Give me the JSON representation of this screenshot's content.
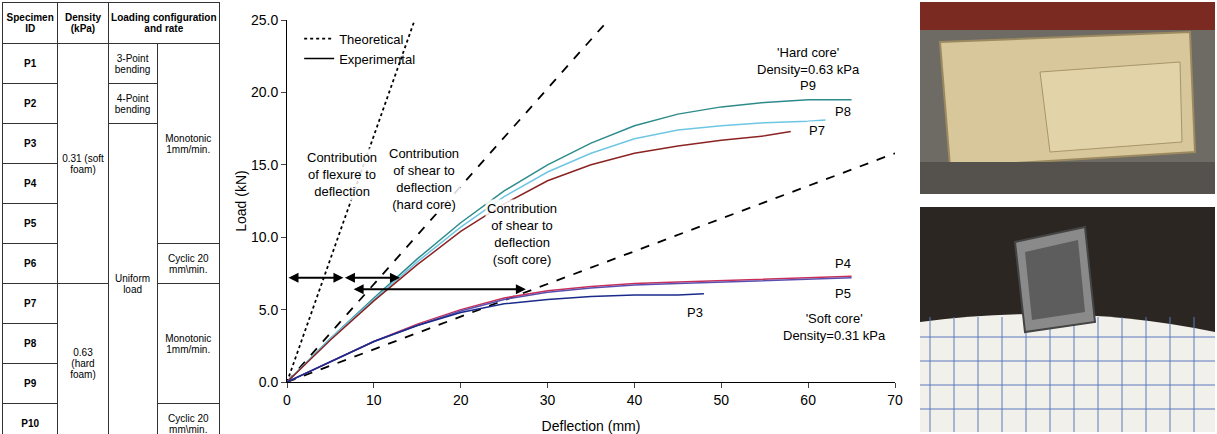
{
  "table": {
    "header": [
      "Specimen ID",
      "Density (kPa)",
      "Loading configuration and rate"
    ],
    "ids": [
      "P1",
      "P2",
      "P3",
      "P4",
      "P5",
      "P6",
      "P7",
      "P8",
      "P9",
      "P10"
    ],
    "density": [
      {
        "text": "0.31 (soft foam)",
        "span": 6
      },
      {
        "text": "0.63 (hard foam)",
        "span": 4
      }
    ],
    "configuration": [
      {
        "text": "3-Point bending",
        "span": 1
      },
      {
        "text": "4-Point bending",
        "span": 1
      },
      {
        "text": "Uniform load",
        "span": 8
      }
    ],
    "rate": [
      {
        "text": "Monotonic 1mm/min.",
        "span": 5
      },
      {
        "text": "Cyclic 20 mm\\min.",
        "span": 1
      },
      {
        "text": "Monotonic 1mm/min.",
        "span": 3
      },
      {
        "text": "Cyclic 20 mm\\min.",
        "span": 1
      }
    ]
  },
  "chart_data": {
    "type": "line",
    "x_label": "Deflection (mm)",
    "y_label": "Load (kN)",
    "xlim": [
      0,
      70
    ],
    "xticks": [
      0,
      10,
      20,
      30,
      40,
      50,
      60,
      70
    ],
    "ylim": [
      0,
      25
    ],
    "yticks": [
      {
        "value": 0,
        "label": "0.0"
      },
      {
        "value": 5,
        "label": "5.0"
      },
      {
        "value": 10,
        "label": "10.0"
      },
      {
        "value": 15,
        "label": "15.0"
      },
      {
        "value": 20,
        "label": "20.0"
      },
      {
        "value": 25,
        "label": "25.0"
      }
    ],
    "grid": false,
    "legend": "top-left",
    "series": [
      {
        "name": "Theoretical",
        "color": "#000000",
        "line_style": "dotted",
        "x": [
          0,
          14.7
        ],
        "values": [
          0,
          25
        ]
      },
      {
        "color": "#000000",
        "line_style": "dashed",
        "x": [
          0,
          37
        ],
        "values": [
          0,
          25
        ]
      },
      {
        "color": "#000000",
        "line_style": "dashed",
        "x": [
          0,
          70
        ],
        "values": [
          0,
          15.8
        ]
      },
      {
        "name": "Experimental",
        "color": "#000000",
        "line_style": "solid",
        "x": [
          null
        ],
        "values": [
          null
        ]
      },
      {
        "color": "#2e8b8b",
        "line_style": "solid",
        "x": [
          0,
          5,
          10,
          15,
          20,
          25,
          30,
          35,
          40,
          45,
          50,
          55,
          60,
          65
        ],
        "values": [
          0,
          3.0,
          5.8,
          8.5,
          11.0,
          13.2,
          15.0,
          16.5,
          17.7,
          18.5,
          19.0,
          19.3,
          19.5,
          19.5
        ]
      },
      {
        "color": "#6fc6e3",
        "line_style": "solid",
        "x": [
          0,
          5,
          10,
          15,
          20,
          25,
          30,
          35,
          40,
          45,
          50,
          55,
          60,
          62
        ],
        "values": [
          0,
          3.0,
          5.7,
          8.3,
          10.7,
          12.8,
          14.5,
          15.8,
          16.8,
          17.4,
          17.7,
          17.9,
          18.0,
          18.1
        ]
      },
      {
        "color": "#8b2323",
        "line_style": "solid",
        "x": [
          0,
          5,
          10,
          15,
          20,
          25,
          30,
          35,
          40,
          45,
          50,
          55,
          58
        ],
        "values": [
          0,
          2.9,
          5.6,
          8.1,
          10.4,
          12.3,
          13.9,
          15.0,
          15.8,
          16.3,
          16.7,
          17.0,
          17.3
        ]
      },
      {
        "color": "#c8305a",
        "line_style": "solid",
        "x": [
          0,
          5,
          10,
          15,
          20,
          25,
          30,
          35,
          40,
          45,
          50,
          55,
          60,
          65
        ],
        "values": [
          0,
          1.4,
          2.8,
          4.0,
          5.0,
          5.8,
          6.3,
          6.6,
          6.8,
          6.9,
          7.0,
          7.1,
          7.2,
          7.3
        ]
      },
      {
        "color": "#5a4fb0",
        "line_style": "solid",
        "x": [
          0,
          5,
          10,
          15,
          20,
          25,
          30,
          35,
          40,
          45,
          50,
          55,
          60,
          65
        ],
        "values": [
          0,
          1.4,
          2.8,
          3.9,
          4.9,
          5.7,
          6.2,
          6.5,
          6.7,
          6.8,
          6.9,
          7.0,
          7.1,
          7.2
        ]
      },
      {
        "color": "#1a2a8a",
        "line_style": "solid",
        "x": [
          0,
          5,
          10,
          15,
          20,
          25,
          30,
          35,
          40,
          45,
          48
        ],
        "values": [
          0,
          1.4,
          2.8,
          3.9,
          4.8,
          5.4,
          5.7,
          5.9,
          6.0,
          6.0,
          6.1
        ]
      }
    ],
    "annotations": [
      {
        "lines": [
          "Contribution",
          "of flexure to",
          "deflection"
        ],
        "x": 6.3,
        "y": 14.3
      },
      {
        "lines": [
          "Contribution",
          "of shear to",
          "deflection",
          "(hard core)"
        ],
        "x": 15.8,
        "y": 14.0
      },
      {
        "lines": [
          "Contribution",
          "of shear to",
          "deflection",
          "(soft core)"
        ],
        "x": 27.0,
        "y": 10.2
      },
      {
        "lines": [
          "'Hard core'",
          "Density=0.63 kPa"
        ],
        "x": 60.0,
        "y": 22.2
      },
      {
        "lines": [
          "P9"
        ],
        "x": 60.0,
        "y": 20.5
      },
      {
        "lines": [
          "P8"
        ],
        "x": 64.0,
        "y": 18.7
      },
      {
        "lines": [
          "P7"
        ],
        "x": 61.0,
        "y": 17.4
      },
      {
        "lines": [
          "P4"
        ],
        "x": 64.0,
        "y": 8.2
      },
      {
        "lines": [
          "P5"
        ],
        "x": 64.0,
        "y": 6.1
      },
      {
        "lines": [
          "P3"
        ],
        "x": 47.0,
        "y": 4.8
      },
      {
        "lines": [
          "'Soft core'",
          "Density=0.31 kPa"
        ],
        "x": 63.0,
        "y": 3.8
      }
    ],
    "arrows": [
      {
        "x": [
          0,
          6.5
        ],
        "y": 7.2
      },
      {
        "x": [
          6.5,
          13.0
        ],
        "y": 7.2
      },
      {
        "x": [
          7.5,
          27.5
        ],
        "y": 6.4
      }
    ]
  }
}
